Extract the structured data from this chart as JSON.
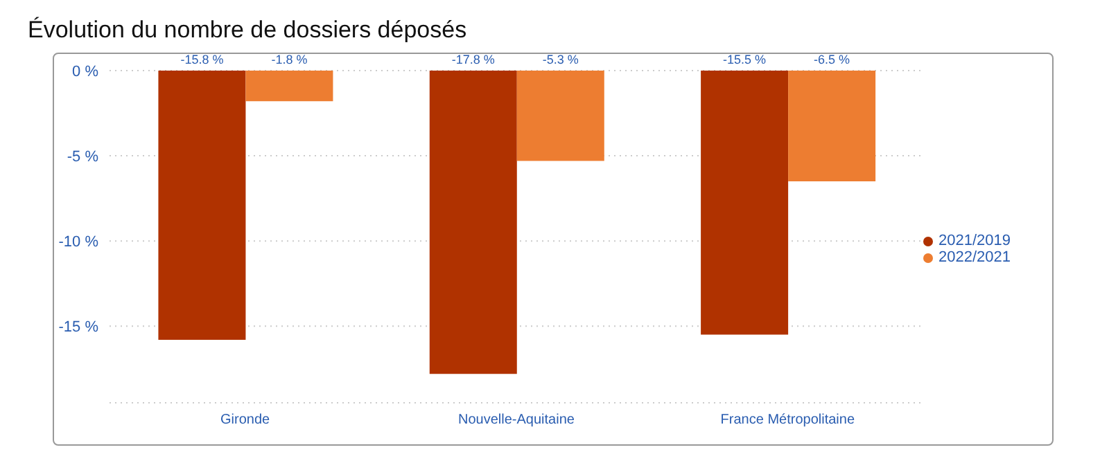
{
  "chart_data": {
    "type": "bar",
    "title": "Évolution du nombre de dossiers déposés",
    "categories": [
      "Gironde",
      "Nouvelle-Aquitaine",
      "France Métropolitaine"
    ],
    "series": [
      {
        "name": "2021/2019",
        "color": "#b03200",
        "values": [
          -15.8,
          -17.8,
          -15.5
        ],
        "value_labels": [
          "-15.8 %",
          "-17.8 %",
          "-15.5 %"
        ]
      },
      {
        "name": "2022/2021",
        "color": "#ed7d31",
        "values": [
          -1.8,
          -5.3,
          -6.5
        ],
        "value_labels": [
          "-1.8 %",
          "-5.3 %",
          "-6.5 %"
        ]
      }
    ],
    "ylim": [
      -19.5,
      0
    ],
    "yticks": [
      {
        "value": 0,
        "label": "0 %"
      },
      {
        "value": -5,
        "label": "-5 %"
      },
      {
        "value": -10,
        "label": "-10 %"
      },
      {
        "value": -15,
        "label": "-15 %"
      }
    ],
    "grid": "y",
    "legend": "right"
  }
}
